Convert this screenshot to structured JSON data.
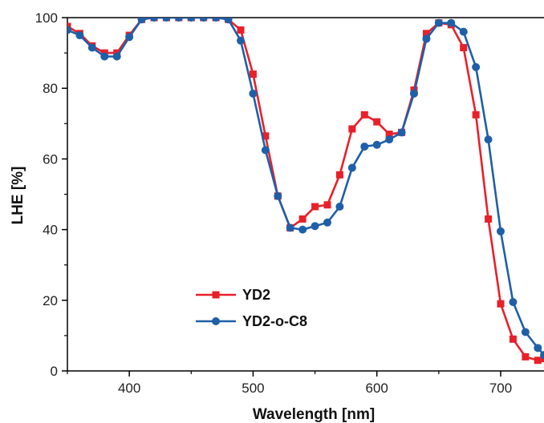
{
  "colors": {
    "YD2": "#e8202a",
    "YD2-o-C8": "#1f5fa8",
    "axis": "#000000"
  },
  "chart_data": {
    "type": "line",
    "title": "",
    "xlabel": "Wavelength [nm]",
    "ylabel": "LHE [%]",
    "xlim": [
      350,
      735
    ],
    "ylim": [
      0,
      100
    ],
    "xticks": [
      400,
      500,
      600,
      700
    ],
    "yticks": [
      0,
      20,
      40,
      60,
      80,
      100
    ],
    "grid": false,
    "legend": "center-left",
    "series": [
      {
        "name": "YD2",
        "marker": "square",
        "x": [
          350,
          360,
          370,
          380,
          390,
          400,
          410,
          420,
          430,
          440,
          450,
          460,
          470,
          480,
          490,
          500,
          510,
          520,
          530,
          540,
          550,
          560,
          570,
          580,
          590,
          600,
          610,
          620,
          630,
          640,
          650,
          660,
          670,
          680,
          690,
          700,
          710,
          720,
          730,
          735
        ],
        "y": [
          97.5,
          95.5,
          92,
          90,
          90,
          95,
          99.5,
          100,
          100,
          100,
          100,
          100,
          100,
          99.5,
          96.5,
          84,
          66.5,
          49.5,
          40.5,
          43,
          46.5,
          47,
          55.5,
          68.5,
          72.5,
          70.5,
          67,
          67.5,
          79.5,
          95.5,
          98.5,
          98,
          91.5,
          72.5,
          43,
          19,
          9,
          4,
          3,
          3.5
        ]
      },
      {
        "name": "YD2-o-C8",
        "marker": "circle",
        "x": [
          350,
          360,
          370,
          380,
          390,
          400,
          410,
          420,
          430,
          440,
          450,
          460,
          470,
          480,
          490,
          500,
          510,
          520,
          530,
          540,
          550,
          560,
          570,
          580,
          590,
          600,
          610,
          620,
          630,
          640,
          650,
          660,
          670,
          680,
          690,
          700,
          710,
          720,
          730,
          735
        ],
        "y": [
          96.5,
          95,
          91.5,
          89,
          89,
          94.5,
          99.5,
          100,
          100,
          100,
          100,
          100,
          100,
          99.5,
          93.5,
          78.5,
          62.5,
          49.5,
          40.5,
          40,
          41,
          42,
          46.5,
          57.5,
          63.5,
          64,
          65.5,
          67.5,
          78.5,
          94,
          98.5,
          98.5,
          96,
          86,
          65.5,
          39.5,
          19.5,
          11,
          6.5,
          4.5
        ]
      }
    ]
  }
}
